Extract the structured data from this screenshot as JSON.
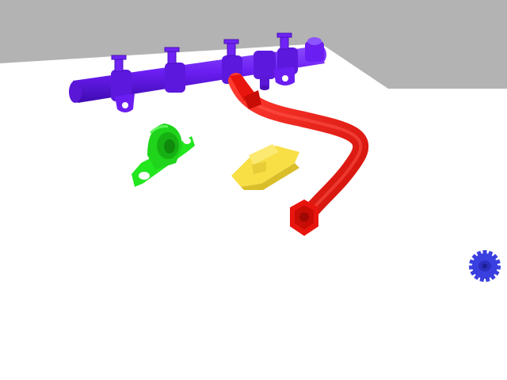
{
  "scene": {
    "background_color": "#b3b3b3",
    "floor_color": "#ffffff",
    "objects": [
      {
        "name": "fuel-rail",
        "color": "#6b1ef2"
      },
      {
        "name": "pillow-block-bearing",
        "color": "#22e61e"
      },
      {
        "name": "yellow-clip",
        "color": "#f7df45"
      },
      {
        "name": "hose-fitting",
        "color": "#f21a12"
      },
      {
        "name": "spur-gear",
        "color": "#3a3fe0"
      }
    ]
  }
}
